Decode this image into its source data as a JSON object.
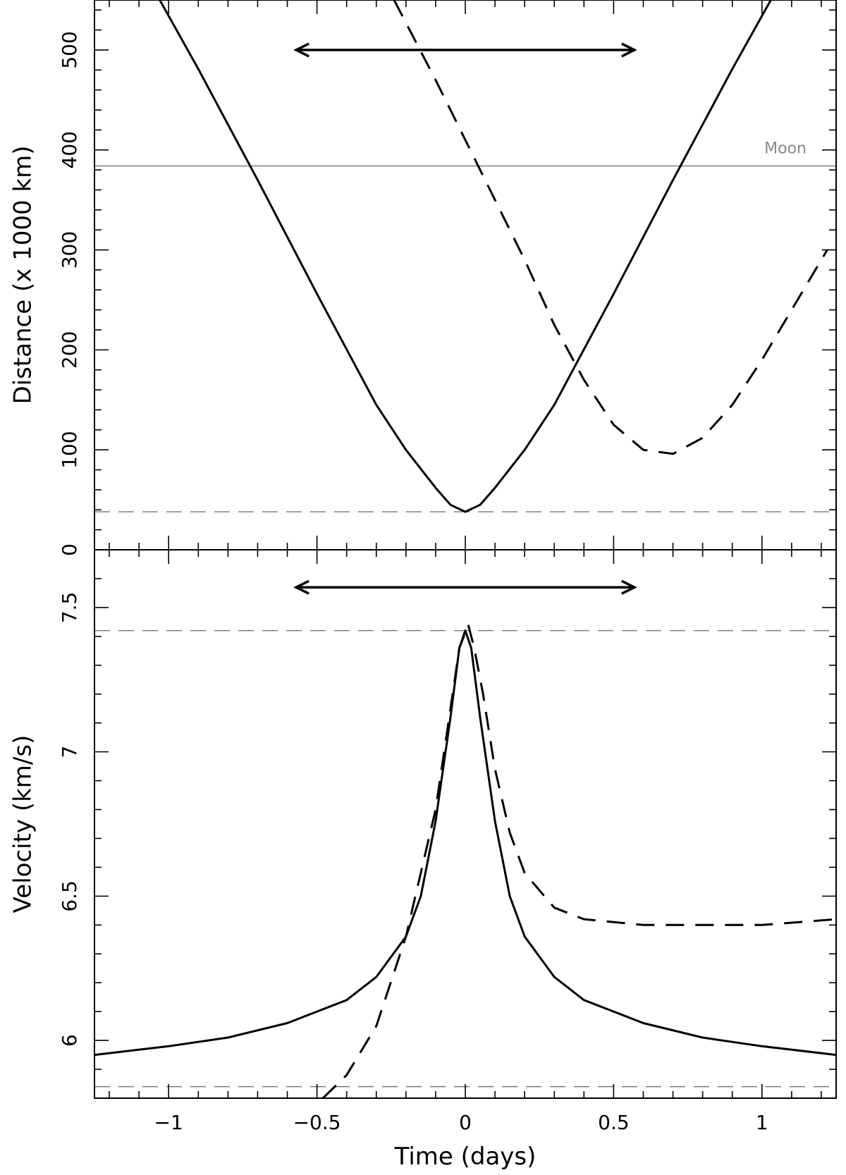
{
  "chart_data": [
    {
      "type": "line",
      "panel": "top",
      "xlabel": "",
      "ylabel": "Distance (x 1000 km)",
      "xlim": [
        -1.25,
        1.25
      ],
      "ylim": [
        0,
        550
      ],
      "xticks_major": [
        -1,
        -0.5,
        0,
        0.5,
        1
      ],
      "xticks_minor_step": 0.1,
      "yticks_major": [
        0,
        100,
        200,
        300,
        400,
        500
      ],
      "yticks_label": [
        "0",
        "100",
        "200",
        "300",
        "400",
        "500"
      ],
      "yticks_minor_step": 20,
      "grid": false,
      "reference_lines": [
        {
          "label": "Moon",
          "y": 384,
          "style": "solid",
          "color": "#777777"
        },
        {
          "label": "",
          "y": 38,
          "style": "dashed",
          "color": "#777777"
        }
      ],
      "series": [
        {
          "style": "solid",
          "points": [
            [
              -1.03,
              550
            ],
            [
              -0.9,
              481
            ],
            [
              -0.7,
              370
            ],
            [
              -0.5,
              256
            ],
            [
              -0.3,
              145
            ],
            [
              -0.2,
              100
            ],
            [
              -0.1,
              62
            ],
            [
              -0.05,
              45
            ],
            [
              0,
              38
            ],
            [
              0.05,
              45
            ],
            [
              0.1,
              62
            ],
            [
              0.2,
              100
            ],
            [
              0.3,
              145
            ],
            [
              0.5,
              256
            ],
            [
              0.7,
              370
            ],
            [
              0.9,
              481
            ],
            [
              1.03,
              550
            ]
          ]
        },
        {
          "style": "dashed",
          "points": [
            [
              -0.24,
              550
            ],
            [
              -0.1,
              470
            ],
            [
              0,
              410
            ],
            [
              0.1,
              350
            ],
            [
              0.2,
              290
            ],
            [
              0.3,
              225
            ],
            [
              0.4,
              170
            ],
            [
              0.5,
              125
            ],
            [
              0.6,
              100
            ],
            [
              0.7,
              96
            ],
            [
              0.8,
              112
            ],
            [
              0.9,
              145
            ],
            [
              1.0,
              190
            ],
            [
              1.1,
              240
            ],
            [
              1.22,
              300
            ]
          ]
        }
      ],
      "annotations": [
        {
          "type": "double-arrow",
          "x_from": -0.57,
          "x_to": 0.57,
          "y": 500
        }
      ]
    },
    {
      "type": "line",
      "panel": "bottom",
      "xlabel": "Time (days)",
      "ylabel": "Velocity (km/s)",
      "xlim": [
        -1.25,
        1.25
      ],
      "ylim": [
        5.8,
        7.7
      ],
      "xticks_major": [
        -1,
        -0.5,
        0,
        0.5,
        1
      ],
      "xticks_label": [
        "−1",
        "−0.5",
        "0",
        "0.5",
        "1"
      ],
      "xticks_minor_step": 0.1,
      "yticks_major": [
        6,
        6.5,
        7,
        7.5
      ],
      "yticks_label": [
        "6",
        "6.5",
        "7",
        "7.5"
      ],
      "yticks_minor_step": 0.1,
      "grid": false,
      "reference_lines": [
        {
          "label": "",
          "y": 7.42,
          "style": "dashed",
          "color": "#777777"
        },
        {
          "label": "",
          "y": 5.84,
          "style": "dashed",
          "color": "#777777"
        }
      ],
      "series": [
        {
          "style": "solid",
          "points": [
            [
              -1.25,
              5.95
            ],
            [
              -1.0,
              5.98
            ],
            [
              -0.8,
              6.01
            ],
            [
              -0.6,
              6.06
            ],
            [
              -0.4,
              6.14
            ],
            [
              -0.3,
              6.22
            ],
            [
              -0.2,
              6.36
            ],
            [
              -0.15,
              6.5
            ],
            [
              -0.1,
              6.76
            ],
            [
              -0.05,
              7.12
            ],
            [
              -0.02,
              7.36
            ],
            [
              0,
              7.42
            ],
            [
              0.02,
              7.36
            ],
            [
              0.05,
              7.12
            ],
            [
              0.1,
              6.76
            ],
            [
              0.15,
              6.5
            ],
            [
              0.2,
              6.36
            ],
            [
              0.3,
              6.22
            ],
            [
              0.4,
              6.14
            ],
            [
              0.6,
              6.06
            ],
            [
              0.8,
              6.01
            ],
            [
              1.0,
              5.98
            ],
            [
              1.25,
              5.95
            ]
          ]
        },
        {
          "style": "dashed",
          "points": [
            [
              -0.48,
              5.8
            ],
            [
              -0.4,
              5.88
            ],
            [
              -0.3,
              6.05
            ],
            [
              -0.2,
              6.36
            ],
            [
              -0.1,
              6.8
            ],
            [
              -0.05,
              7.15
            ],
            [
              -0.02,
              7.36
            ],
            [
              0.01,
              7.44
            ],
            [
              0.03,
              7.36
            ],
            [
              0.06,
              7.2
            ],
            [
              0.1,
              6.94
            ],
            [
              0.15,
              6.72
            ],
            [
              0.2,
              6.58
            ],
            [
              0.3,
              6.46
            ],
            [
              0.4,
              6.42
            ],
            [
              0.6,
              6.4
            ],
            [
              0.8,
              6.4
            ],
            [
              1.0,
              6.4
            ],
            [
              1.25,
              6.42
            ]
          ]
        }
      ],
      "annotations": [
        {
          "type": "double-arrow",
          "x_from": -0.57,
          "x_to": 0.57,
          "y": 7.57
        }
      ]
    }
  ]
}
